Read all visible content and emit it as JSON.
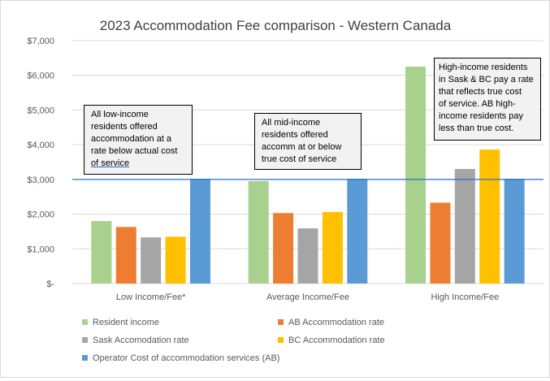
{
  "chart_data": {
    "type": "bar",
    "title": "2023 Accommodation Fee comparison - Western Canada",
    "categories": [
      "Low Income/Fee*",
      "Average Income/Fee",
      "High Income/Fee"
    ],
    "series": [
      {
        "name": "Resident income",
        "color": "#a9d18e",
        "values": [
          1800,
          2950,
          6250
        ]
      },
      {
        "name": "AB Accommodation rate",
        "color": "#ed7d31",
        "values": [
          1630,
          2030,
          2330
        ]
      },
      {
        "name": "Sask Accomodation rate",
        "color": "#a5a5a5",
        "values": [
          1330,
          1590,
          3300
        ]
      },
      {
        "name": "BC Accommodation rate",
        "color": "#ffc000",
        "values": [
          1350,
          2060,
          3860
        ]
      },
      {
        "name": "Operator Cost of accommodation services (AB)",
        "color": "#5b9bd5",
        "values": [
          3020,
          3020,
          3020
        ]
      }
    ],
    "ylim": [
      0,
      7000
    ],
    "yticks": [
      0,
      1000,
      2000,
      3000,
      4000,
      5000,
      6000,
      7000
    ],
    "ytick_labels": [
      "$-",
      "$1,000",
      "$2,000",
      "$3,000",
      "$4,000",
      "$5,000",
      "$6,000",
      "$7,000"
    ],
    "reference_line": {
      "value": 3000,
      "color": "#2e75b6"
    },
    "grid": true,
    "legend": "bottom",
    "annotations": [
      {
        "lines": [
          "All low-income",
          "residents offered",
          "accommodation at a",
          "rate below actual cost",
          "of service"
        ]
      },
      {
        "lines": [
          "All mid-income",
          "residents offered",
          "accomm at or below",
          "true cost of service"
        ]
      },
      {
        "lines": [
          "High-income residents",
          "in Sask & BC pay a rate",
          "that reflects true cost",
          "of service. AB high-",
          "income residents pay",
          "less than true cost."
        ]
      }
    ]
  }
}
